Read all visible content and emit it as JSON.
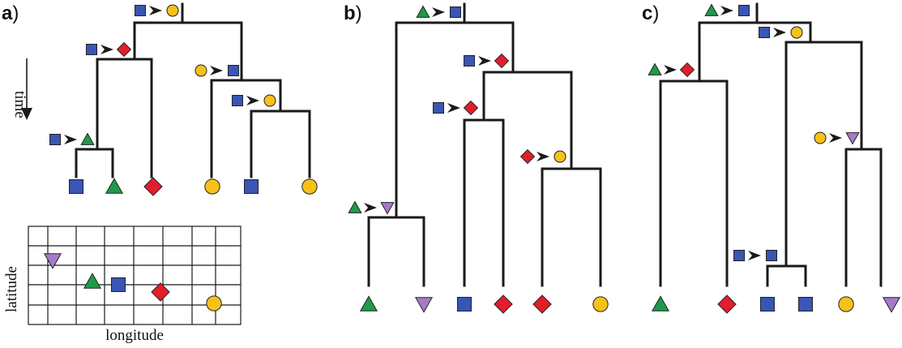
{
  "panel_labels": {
    "a": "a",
    "b": "b",
    "c": "c",
    "close": ")"
  },
  "axis_labels": {
    "time": "time",
    "latitude": "latitude",
    "longitude": "longitude"
  },
  "colors": {
    "square": "#3a55b4",
    "triangle": "#1f9a4a",
    "diamond": "#e21e2b",
    "circle": "#f6c21a",
    "triangle_down": "#a77ac9",
    "line": "#1a1a1a"
  },
  "panel_a": {
    "tips": [
      "square",
      "triangle",
      "diamond",
      "circle",
      "square",
      "circle"
    ],
    "transitions": [
      {
        "from": "square",
        "to": "circle"
      },
      {
        "from": "square",
        "to": "diamond"
      },
      {
        "from": "square",
        "to": "triangle"
      },
      {
        "from": "circle",
        "to": "square"
      },
      {
        "from": "square",
        "to": "circle"
      }
    ],
    "map_points": [
      "triangle_down",
      "triangle",
      "square",
      "diamond",
      "circle"
    ]
  },
  "panel_b": {
    "tips": [
      "triangle",
      "triangle_down",
      "square",
      "diamond",
      "diamond",
      "circle"
    ],
    "transitions": [
      {
        "from": "triangle",
        "to": "square"
      },
      {
        "from": "square",
        "to": "diamond"
      },
      {
        "from": "square",
        "to": "diamond"
      },
      {
        "from": "diamond",
        "to": "circle"
      },
      {
        "from": "triangle",
        "to": "triangle_down"
      }
    ]
  },
  "panel_c": {
    "tips": [
      "triangle",
      "diamond",
      "square",
      "square",
      "circle",
      "triangle_down"
    ],
    "transitions": [
      {
        "from": "triangle",
        "to": "square"
      },
      {
        "from": "square",
        "to": "circle"
      },
      {
        "from": "triangle",
        "to": "diamond"
      },
      {
        "from": "circle",
        "to": "triangle_down"
      },
      {
        "from": "square",
        "to": "square"
      }
    ]
  }
}
